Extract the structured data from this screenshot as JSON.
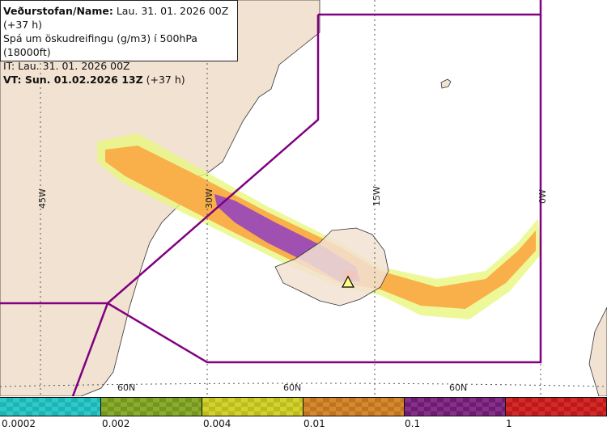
{
  "header": {
    "line1_label": "Veðurstofan/Name:",
    "line1_value": " Lau. 31. 01. 2026 00Z (+37 h)",
    "line2": "Spá um öskudreifingu (g/m3) í 500hPa (18000ft)",
    "line3": "IT: Lau. 31. 01. 2026 00Z",
    "line4_label": "VT: Sun. 01.02.2026 13Z",
    "line4_value": " (+37 h)"
  },
  "map": {
    "longitude_labels": [
      "45W",
      "30W",
      "15W",
      "0W"
    ],
    "latitude_labels": [
      "60N",
      "60N",
      "60N"
    ],
    "volcano_icon": "triangle-icon",
    "colors": {
      "land": "#f2e2d2",
      "zone_line": "#800080",
      "plume_orange": "#f9b04a",
      "plume_purple": "#a050b0",
      "plume_red": "#e03030"
    }
  },
  "legend": {
    "swatches": [
      {
        "color": "#2fc9c9",
        "dark": "#1fb3b3"
      },
      {
        "color": "#8aac30",
        "dark": "#74961c"
      },
      {
        "color": "#d3d230",
        "dark": "#bcbc1c"
      },
      {
        "color": "#d68a30",
        "dark": "#bf7420"
      },
      {
        "color": "#86308a",
        "dark": "#6e1c72"
      },
      {
        "color": "#d62a2a",
        "dark": "#bb1a1a"
      }
    ],
    "ticks": [
      "0.0002",
      "0.002",
      "0.004",
      "0.01",
      "0.1",
      "1"
    ]
  }
}
